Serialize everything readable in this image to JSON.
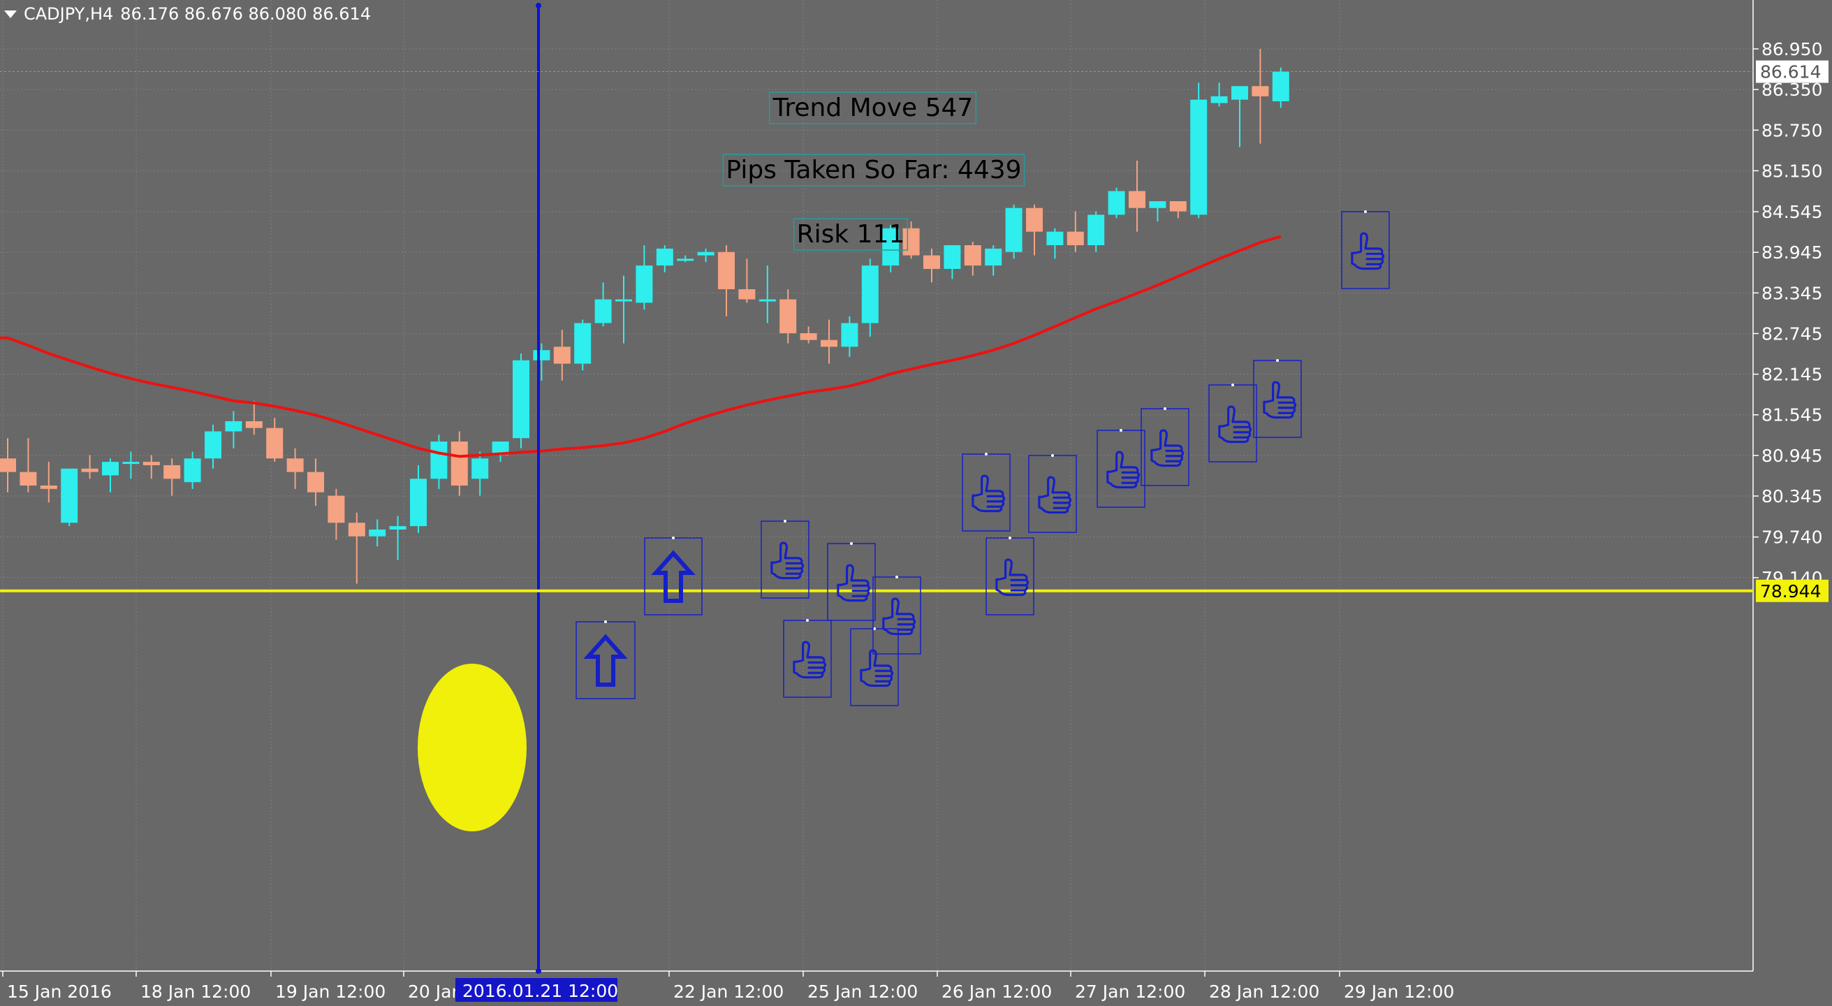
{
  "header": {
    "symbol": "CADJPY,H4",
    "ohlc": "86.176 86.676 86.080 86.614"
  },
  "colors": {
    "background": "#686868",
    "grid": "#7f7f7f",
    "bull": "#2eeeee",
    "bear": "#f5a382",
    "ma": "#ee1111",
    "vline": "#0a14d8",
    "support": "#f2f20a",
    "highlight": "#f0f00a",
    "annotation_box": "#1520c8",
    "text": "#ffffff"
  },
  "annotations": {
    "trend_move": "Trend Move 547",
    "pips_taken": "Pips Taken So Far: 4439",
    "risk": "Risk 111"
  },
  "signals": {
    "arrow_icon": "up-arrow-icon",
    "thumb_icon": "thumbs-up-icon",
    "arrow_count": 2,
    "thumb_count": 14
  },
  "chart_data": {
    "type": "candlestick",
    "symbol": "CADJPY",
    "timeframe": "H4",
    "y_axis": {
      "ticks": [
        "86.950",
        "86.350",
        "85.750",
        "85.150",
        "84.545",
        "83.945",
        "83.345",
        "82.745",
        "82.145",
        "81.545",
        "80.945",
        "80.345",
        "79.740",
        "79.140"
      ],
      "range": [
        79.0,
        87.05
      ]
    },
    "x_axis": {
      "ticks": [
        "15 Jan 2016",
        "18 Jan 12:00",
        "19 Jan 12:00",
        "20 Jan 12:00",
        "22 Jan 12:00",
        "25 Jan 12:00",
        "26 Jan 12:00",
        "27 Jan 12:00",
        "28 Jan 12:00",
        "29 Jan 12:00"
      ]
    },
    "current_price_label": "86.614",
    "support_price_label": "78.944",
    "vertical_line_label": "2016.01.21 12:00",
    "ohlc_columns": [
      "open",
      "high",
      "low",
      "close"
    ],
    "candles": [
      [
        80.9,
        81.2,
        80.4,
        80.7
      ],
      [
        80.7,
        81.2,
        80.4,
        80.5
      ],
      [
        80.5,
        80.85,
        80.25,
        80.45
      ],
      [
        79.95,
        80.75,
        79.9,
        80.75
      ],
      [
        80.75,
        80.95,
        80.6,
        80.7
      ],
      [
        80.65,
        80.9,
        80.4,
        80.85
      ],
      [
        80.85,
        81.0,
        80.6,
        80.85
      ],
      [
        80.85,
        80.95,
        80.6,
        80.8
      ],
      [
        80.8,
        80.9,
        80.35,
        80.6
      ],
      [
        80.55,
        81.0,
        80.45,
        80.9
      ],
      [
        80.9,
        81.4,
        80.75,
        81.3
      ],
      [
        81.3,
        81.6,
        81.05,
        81.45
      ],
      [
        81.45,
        81.75,
        81.25,
        81.35
      ],
      [
        81.35,
        81.5,
        80.85,
        80.9
      ],
      [
        80.9,
        81.05,
        80.45,
        80.7
      ],
      [
        80.7,
        80.9,
        80.2,
        80.4
      ],
      [
        80.35,
        80.45,
        79.7,
        79.95
      ],
      [
        79.95,
        80.1,
        79.05,
        79.75
      ],
      [
        79.75,
        80.0,
        79.6,
        79.85
      ],
      [
        79.85,
        80.05,
        79.4,
        79.9
      ],
      [
        79.9,
        80.8,
        79.8,
        80.6
      ],
      [
        80.6,
        81.25,
        80.45,
        81.15
      ],
      [
        81.15,
        81.3,
        80.35,
        80.5
      ],
      [
        80.6,
        81.0,
        80.35,
        80.9
      ],
      [
        80.95,
        81.15,
        80.85,
        81.15
      ],
      [
        81.2,
        82.45,
        81.05,
        82.35
      ],
      [
        82.35,
        82.6,
        82.05,
        82.5
      ],
      [
        82.55,
        82.8,
        82.05,
        82.3
      ],
      [
        82.3,
        82.95,
        82.2,
        82.9
      ],
      [
        82.9,
        83.5,
        82.85,
        83.25
      ],
      [
        83.25,
        83.6,
        82.6,
        83.25
      ],
      [
        83.2,
        84.05,
        83.1,
        83.75
      ],
      [
        83.75,
        84.05,
        83.65,
        84.0
      ],
      [
        83.85,
        83.9,
        83.8,
        83.85
      ],
      [
        83.9,
        84.0,
        83.8,
        83.95
      ],
      [
        83.95,
        84.05,
        83.0,
        83.4
      ],
      [
        83.4,
        83.85,
        83.2,
        83.25
      ],
      [
        83.25,
        83.75,
        82.9,
        83.25
      ],
      [
        83.25,
        83.4,
        82.6,
        82.75
      ],
      [
        82.75,
        82.85,
        82.6,
        82.65
      ],
      [
        82.65,
        82.95,
        82.3,
        82.55
      ],
      [
        82.55,
        83.0,
        82.4,
        82.9
      ],
      [
        82.9,
        83.85,
        82.7,
        83.75
      ],
      [
        83.75,
        84.35,
        83.65,
        84.3
      ],
      [
        84.3,
        84.4,
        83.85,
        83.9
      ],
      [
        83.9,
        84.0,
        83.5,
        83.7
      ],
      [
        83.7,
        84.05,
        83.55,
        84.05
      ],
      [
        84.05,
        84.1,
        83.6,
        83.75
      ],
      [
        83.75,
        84.05,
        83.6,
        84.0
      ],
      [
        83.95,
        84.65,
        83.85,
        84.6
      ],
      [
        84.6,
        84.65,
        83.9,
        84.25
      ],
      [
        84.05,
        84.3,
        83.85,
        84.25
      ],
      [
        84.25,
        84.55,
        83.95,
        84.05
      ],
      [
        84.05,
        84.55,
        83.95,
        84.5
      ],
      [
        84.5,
        84.9,
        84.45,
        84.85
      ],
      [
        84.85,
        85.3,
        84.25,
        84.6
      ],
      [
        84.6,
        84.7,
        84.4,
        84.7
      ],
      [
        84.7,
        84.7,
        84.45,
        84.55
      ],
      [
        84.5,
        86.45,
        84.45,
        86.2
      ],
      [
        86.15,
        86.45,
        86.1,
        86.25
      ],
      [
        86.2,
        86.4,
        85.5,
        86.4
      ],
      [
        86.4,
        86.95,
        85.55,
        86.25
      ],
      [
        86.176,
        86.676,
        86.08,
        86.614
      ]
    ],
    "ma": [
      82.68,
      82.57,
      82.45,
      82.35,
      82.25,
      82.16,
      82.08,
      82.01,
      81.95,
      81.89,
      81.82,
      81.75,
      81.72,
      81.67,
      81.61,
      81.54,
      81.45,
      81.35,
      81.25,
      81.15,
      81.05,
      80.98,
      80.93,
      80.95,
      80.97,
      80.99,
      81.01,
      81.04,
      81.06,
      81.09,
      81.13,
      81.2,
      81.3,
      81.42,
      81.52,
      81.61,
      81.69,
      81.76,
      81.82,
      81.88,
      81.92,
      81.97,
      82.05,
      82.15,
      82.22,
      82.29,
      82.35,
      82.42,
      82.5,
      82.6,
      82.72,
      82.85,
      82.98,
      83.11,
      83.22,
      83.34,
      83.46,
      83.59,
      83.72,
      83.85,
      83.97,
      84.09,
      84.18
    ]
  }
}
